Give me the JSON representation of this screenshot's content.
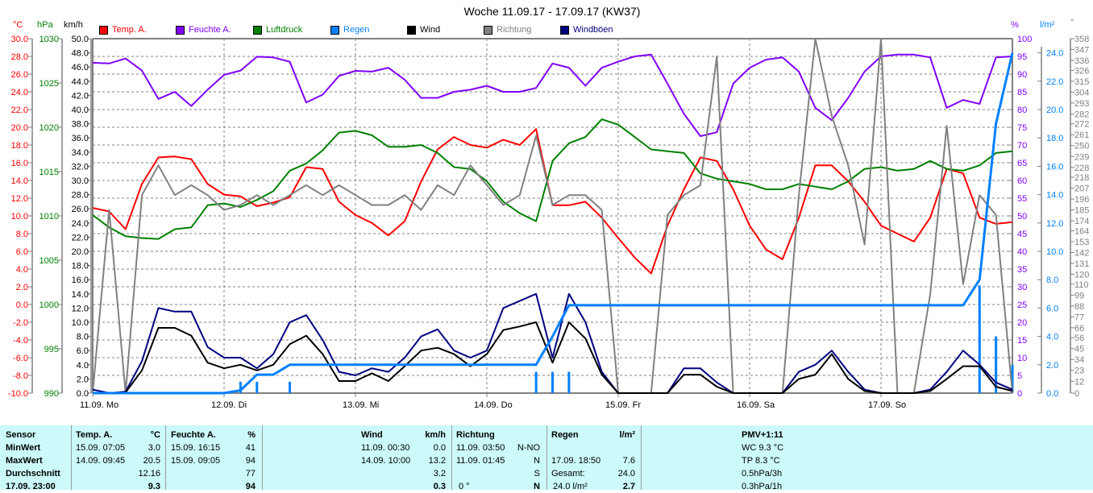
{
  "title": "Woche 11.09.17 - 17.09.17 (KW37)",
  "units": {
    "temp": "°C",
    "pressure": "hPa",
    "wind": "km/h",
    "humidity": "%",
    "rain": "l/m²",
    "direction": "°"
  },
  "legend": [
    {
      "label": "Temp. A.",
      "color": "#ff0000"
    },
    {
      "label": "Feuchte A.",
      "color": "#8000ff"
    },
    {
      "label": "Luftdruck",
      "color": "#008000"
    },
    {
      "label": "Regen",
      "color": "#0080ff"
    },
    {
      "label": "Wind",
      "color": "#000000"
    },
    {
      "label": "Richtung",
      "color": "#808080"
    },
    {
      "label": "Windböen",
      "color": "#000080"
    }
  ],
  "chart_data": {
    "type": "line",
    "title": "Woche 11.09.17 - 17.09.17 (KW37)",
    "x_tick_labels": [
      "11.09.  Mo",
      "12.09.  Di",
      "13.09.  Mi",
      "14.09.  Do",
      "15.09.  Fr",
      "16.09.  Sa",
      "17.09.  So"
    ],
    "x_range": [
      "11.09.17 00:00",
      "17.09.17 24:00"
    ],
    "x_step": "3h",
    "grid": true,
    "legend_placement": "top",
    "axes": {
      "temp": {
        "range": [
          -10,
          30
        ],
        "ticks": [
          "30.0",
          "28.0",
          "26.0",
          "24.0",
          "22.0",
          "20.0",
          "18.0",
          "16.0",
          "14.0",
          "12.0",
          "10.0",
          "8.0",
          "6.0",
          "4.0",
          "2.0",
          "0.0",
          "-2.0",
          "-4.0",
          "-6.0",
          "-8.0",
          "-10.0"
        ]
      },
      "pressure": {
        "range": [
          990,
          1030
        ],
        "ticks": [
          "1030",
          "1025",
          "1020",
          "1015",
          "1010",
          "1005",
          "1000",
          "995",
          "990"
        ]
      },
      "wind": {
        "range": [
          0,
          50
        ],
        "ticks": [
          "50.0",
          "48.0",
          "46.0",
          "44.0",
          "42.0",
          "40.0",
          "38.0",
          "36.0",
          "34.0",
          "32.0",
          "30.0",
          "28.0",
          "26.0",
          "24.0",
          "22.0",
          "20.0",
          "18.0",
          "16.0",
          "14.0",
          "12.0",
          "10.0",
          "8.0",
          "6.0",
          "4.0",
          "2.0",
          "0.0"
        ]
      },
      "humidity": {
        "range": [
          0,
          100
        ],
        "ticks": [
          "100",
          "95",
          "90",
          "85",
          "80",
          "75",
          "70",
          "65",
          "60",
          "55",
          "50",
          "45",
          "40",
          "35",
          "30",
          "25",
          "20",
          "15",
          "10",
          "5",
          "0"
        ]
      },
      "rain": {
        "range": [
          0,
          25
        ],
        "ticks": [
          "24.0",
          "22.0",
          "20.0",
          "18.0",
          "16.0",
          "14.0",
          "12.0",
          "10.0",
          "8.0",
          "6.0",
          "4.0",
          "2.0",
          "0.0"
        ]
      },
      "direction": {
        "range": [
          0,
          358
        ],
        "ticks": [
          "358",
          "347",
          "336",
          "326",
          "315",
          "304",
          "293",
          "282",
          "272",
          "261",
          "250",
          "239",
          "228",
          "218",
          "207",
          "196",
          "185",
          "174",
          "164",
          "153",
          "142",
          "131",
          "120",
          "110",
          "99",
          "88",
          "77",
          "66",
          "56",
          "45",
          "34",
          "23",
          "12",
          "0"
        ]
      }
    },
    "series": [
      {
        "name": "Temp. A.",
        "axis": "temp",
        "color": "#ff0000",
        "values": [
          10.9,
          10.5,
          8.5,
          13.6,
          16.6,
          16.7,
          16.4,
          13.6,
          12.4,
          12.2,
          11.1,
          11.5,
          12.1,
          15.5,
          15.3,
          11.6,
          10.1,
          9.2,
          7.8,
          9.4,
          13.9,
          17.5,
          18.9,
          18.0,
          17.7,
          18.6,
          18.0,
          19.8,
          11.2,
          11.2,
          11.6,
          9.8,
          7.5,
          5.3,
          3.5,
          8.9,
          13.0,
          16.6,
          16.2,
          13.0,
          8.9,
          6.2,
          5.1,
          9.8,
          15.7,
          15.7,
          13.9,
          11.6,
          8.9,
          8.0,
          7.1,
          9.8,
          15.3,
          14.8,
          9.8,
          9.1,
          9.3
        ]
      },
      {
        "name": "Feuchte A.",
        "axis": "humidity",
        "color": "#8000ff",
        "values": [
          93.2,
          93,
          94.4,
          91,
          83,
          85,
          81,
          85.6,
          89.8,
          91,
          94.9,
          94.7,
          93.5,
          82,
          84.2,
          89.5,
          90.9,
          90.7,
          91.8,
          88.4,
          83.3,
          83.3,
          85,
          85.6,
          86.7,
          85,
          85,
          86.1,
          93,
          91.8,
          86.7,
          91.8,
          93.5,
          95,
          95.5,
          87.3,
          78.8,
          72.5,
          73.6,
          87.3,
          91.8,
          94.1,
          94.7,
          90.7,
          80.5,
          77,
          83.3,
          90.7,
          95,
          95.5,
          95.5,
          94.7,
          80.5,
          82.7,
          81.6,
          94.7,
          95
        ]
      },
      {
        "name": "Luftdruck",
        "axis": "pressure",
        "color": "#008000",
        "values": [
          1010.1,
          1008.7,
          1007.7,
          1007.5,
          1007.4,
          1008.5,
          1008.7,
          1011.2,
          1011.4,
          1011,
          1011.8,
          1012.8,
          1015.1,
          1015.9,
          1017.4,
          1019.4,
          1019.6,
          1019.1,
          1017.8,
          1017.8,
          1018,
          1017.1,
          1015.5,
          1015.3,
          1013.9,
          1011.6,
          1010.3,
          1009.4,
          1016.2,
          1018.2,
          1018.9,
          1020.9,
          1020.3,
          1018.9,
          1017.5,
          1017.3,
          1017.1,
          1014.8,
          1014.2,
          1013.9,
          1013.6,
          1013,
          1013,
          1013.6,
          1013.3,
          1013,
          1013.9,
          1015.3,
          1015.5,
          1015.1,
          1015.3,
          1016.2,
          1015.3,
          1015.1,
          1015.7,
          1017.1,
          1017.3
        ]
      },
      {
        "name": "Richtung",
        "axis": "direction",
        "color": "#808080",
        "values": [
          0,
          185,
          0,
          200,
          230,
          200,
          210,
          200,
          185,
          190,
          200,
          190,
          200,
          210,
          200,
          210,
          200,
          190,
          190,
          200,
          185,
          210,
          200,
          230,
          210,
          190,
          200,
          260,
          190,
          200,
          200,
          185,
          0,
          0,
          0,
          180,
          200,
          210,
          340,
          0,
          0,
          0,
          0,
          200,
          358,
          280,
          230,
          150,
          358,
          0,
          0,
          100,
          270,
          110,
          200,
          180,
          0
        ]
      },
      {
        "name": "Windböen",
        "axis": "wind",
        "color": "#000080",
        "values": [
          0.5,
          0,
          0.2,
          4.5,
          12,
          11.5,
          11.5,
          6.5,
          5,
          5,
          3.5,
          5.5,
          10,
          11,
          7.5,
          3,
          2.5,
          3.5,
          3,
          5,
          8,
          9,
          6,
          5,
          6,
          12,
          13,
          14,
          5,
          14,
          10,
          3,
          0,
          0,
          0,
          0,
          3.5,
          3.5,
          1.5,
          0,
          0,
          0,
          0,
          3,
          4,
          6,
          3,
          0.5,
          0,
          0,
          0,
          0.5,
          3,
          6,
          4,
          1.5,
          0.5
        ]
      },
      {
        "name": "Wind",
        "axis": "wind",
        "color": "#000000",
        "values": [
          0,
          0,
          0.1,
          3.2,
          9.2,
          9.2,
          8.1,
          4.3,
          3.5,
          4,
          3.2,
          4,
          6.9,
          8.1,
          5.5,
          1.7,
          1.7,
          2.8,
          1.7,
          3.8,
          6,
          6.4,
          5.5,
          3.8,
          5.5,
          8.9,
          9.4,
          10,
          4.3,
          10,
          7.7,
          2.6,
          0,
          0,
          0,
          0,
          2.6,
          2.6,
          0.9,
          0,
          0,
          0,
          0,
          2,
          2.6,
          5.5,
          2,
          0.3,
          0,
          0,
          0,
          0.3,
          2,
          3.8,
          3.8,
          0.9,
          0.3
        ]
      },
      {
        "name": "Regen",
        "axis": "rain",
        "color": "#0080ff",
        "values": [
          0,
          0,
          0,
          0,
          0,
          0,
          0,
          0,
          0,
          0.2,
          1.3,
          1.3,
          2.0,
          2.0,
          2.0,
          2.0,
          2.0,
          2.0,
          2.0,
          2.0,
          2.0,
          2.0,
          2.0,
          2.0,
          2.0,
          2.0,
          2.0,
          2.0,
          4.0,
          6.2,
          6.2,
          6.2,
          6.2,
          6.2,
          6.2,
          6.2,
          6.2,
          6.2,
          6.2,
          6.2,
          6.2,
          6.2,
          6.2,
          6.2,
          6.2,
          6.2,
          6.2,
          6.2,
          6.2,
          6.2,
          6.2,
          6.2,
          6.2,
          6.2,
          8.0,
          19.0,
          24.0
        ]
      }
    ],
    "rain_bars": {
      "axis": "rain",
      "color": "#0080ff",
      "values": [
        0,
        0,
        0,
        0,
        0,
        0,
        0,
        0,
        0,
        0.8,
        0.8,
        0,
        0.8,
        0,
        0,
        0,
        0,
        0,
        0,
        0,
        0,
        0,
        0,
        0,
        0,
        0,
        0,
        1.5,
        1.5,
        1.5,
        0,
        0,
        0,
        0,
        0,
        0,
        0,
        0,
        0,
        0,
        0,
        0,
        0,
        0,
        0,
        0,
        0,
        0,
        0,
        0,
        0,
        0,
        0,
        0,
        7.6,
        4.0,
        2.0
      ]
    }
  },
  "table": {
    "row_labels": [
      "Sensor",
      "MinWert",
      "MaxWert",
      "Durchschnitt",
      "17.09. 23:00"
    ],
    "temp": {
      "header": "Temp. A.",
      "unit": "°C",
      "min_time": "15.09.  07:05",
      "min": "3.0",
      "max_time": "14.09.  09:45",
      "max": "20.5",
      "avg": "12.16",
      "current": "9.3"
    },
    "humidity": {
      "header": "Feuchte A.",
      "unit": "%",
      "min_time": "15.09.  16:15",
      "min": "41",
      "max_time": "15.09.  09:05",
      "max": "94",
      "avg": "77",
      "current": "94"
    },
    "wind": {
      "header": "Wind",
      "unit": "km/h",
      "min_time": "11.09.  00:30",
      "min": "0.0",
      "max_time": "14.09.  10:00",
      "max": "13.2",
      "avg": "3.2",
      "current": "0.3"
    },
    "direction": {
      "header": "Richtung",
      "min_time": "11.09.  03:50",
      "min": "N-NO",
      "max_time": "11.09.  01:45",
      "max": "N",
      "avg": "S",
      "current_deg": "0 °",
      "current": "N"
    },
    "rain": {
      "header": "Regen",
      "unit": "l/m²",
      "max_time": "17.09.  18:50",
      "max": "7.6",
      "total_label": "Gesamt:",
      "total": "24.0",
      "current_label": "24.0 l/m²",
      "current": "2.7"
    },
    "pmv": {
      "header": "PMV+1:11",
      "wc": "WC 9.3 °C",
      "tp": "TP 8.3 °C",
      "trend3h": "0.5hPa/3h",
      "trend1h": "0.3hPa/1h"
    }
  }
}
